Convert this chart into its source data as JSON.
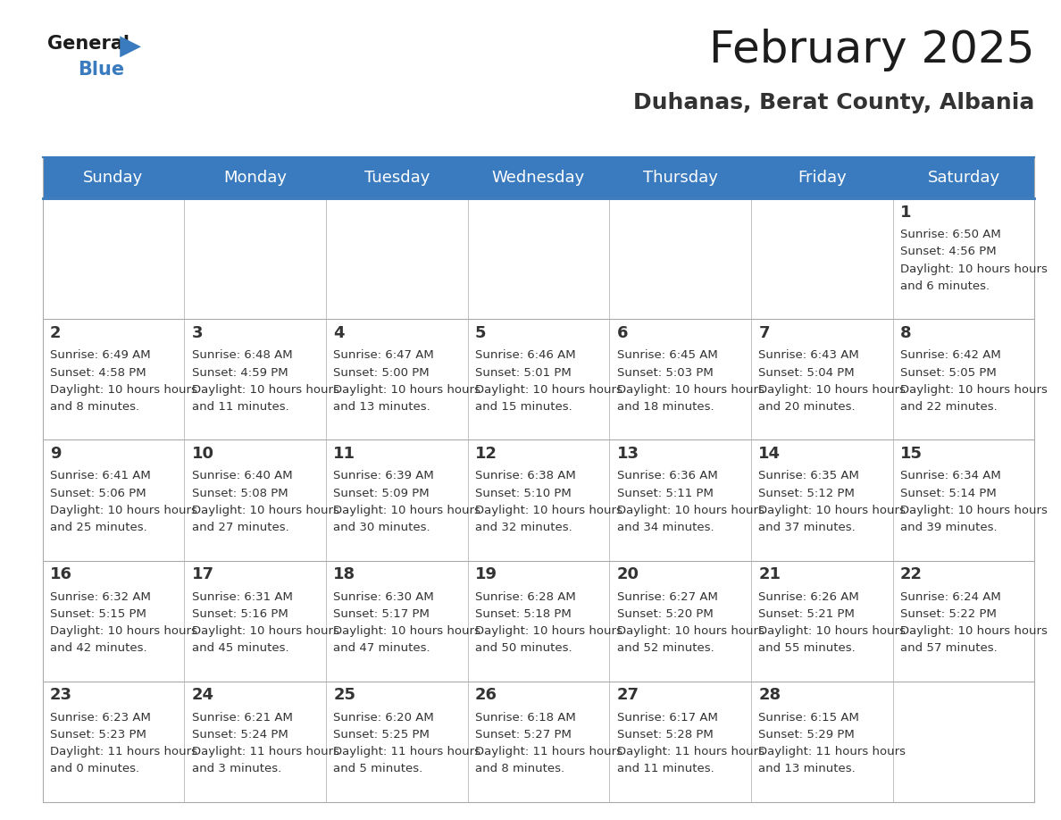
{
  "title": "February 2025",
  "subtitle": "Duhanas, Berat County, Albania",
  "header_color": "#3A7BBF",
  "header_text_color": "#FFFFFF",
  "day_names": [
    "Sunday",
    "Monday",
    "Tuesday",
    "Wednesday",
    "Thursday",
    "Friday",
    "Saturday"
  ],
  "title_fontsize": 36,
  "subtitle_fontsize": 18,
  "day_header_fontsize": 13,
  "cell_day_fontsize": 13,
  "cell_info_fontsize": 9.5,
  "background_color": "#FFFFFF",
  "cell_bg_color": "#FFFFFF",
  "alt_cell_bg_color": "#F0F4F8",
  "grid_color": "#AAAAAA",
  "text_color": "#333333",
  "days_data": [
    {
      "day": 1,
      "col": 6,
      "row": 0,
      "sunrise": "6:50 AM",
      "sunset": "4:56 PM",
      "daylight": "10 hours and 6 minutes."
    },
    {
      "day": 2,
      "col": 0,
      "row": 1,
      "sunrise": "6:49 AM",
      "sunset": "4:58 PM",
      "daylight": "10 hours and 8 minutes."
    },
    {
      "day": 3,
      "col": 1,
      "row": 1,
      "sunrise": "6:48 AM",
      "sunset": "4:59 PM",
      "daylight": "10 hours and 11 minutes."
    },
    {
      "day": 4,
      "col": 2,
      "row": 1,
      "sunrise": "6:47 AM",
      "sunset": "5:00 PM",
      "daylight": "10 hours and 13 minutes."
    },
    {
      "day": 5,
      "col": 3,
      "row": 1,
      "sunrise": "6:46 AM",
      "sunset": "5:01 PM",
      "daylight": "10 hours and 15 minutes."
    },
    {
      "day": 6,
      "col": 4,
      "row": 1,
      "sunrise": "6:45 AM",
      "sunset": "5:03 PM",
      "daylight": "10 hours and 18 minutes."
    },
    {
      "day": 7,
      "col": 5,
      "row": 1,
      "sunrise": "6:43 AM",
      "sunset": "5:04 PM",
      "daylight": "10 hours and 20 minutes."
    },
    {
      "day": 8,
      "col": 6,
      "row": 1,
      "sunrise": "6:42 AM",
      "sunset": "5:05 PM",
      "daylight": "10 hours and 22 minutes."
    },
    {
      "day": 9,
      "col": 0,
      "row": 2,
      "sunrise": "6:41 AM",
      "sunset": "5:06 PM",
      "daylight": "10 hours and 25 minutes."
    },
    {
      "day": 10,
      "col": 1,
      "row": 2,
      "sunrise": "6:40 AM",
      "sunset": "5:08 PM",
      "daylight": "10 hours and 27 minutes."
    },
    {
      "day": 11,
      "col": 2,
      "row": 2,
      "sunrise": "6:39 AM",
      "sunset": "5:09 PM",
      "daylight": "10 hours and 30 minutes."
    },
    {
      "day": 12,
      "col": 3,
      "row": 2,
      "sunrise": "6:38 AM",
      "sunset": "5:10 PM",
      "daylight": "10 hours and 32 minutes."
    },
    {
      "day": 13,
      "col": 4,
      "row": 2,
      "sunrise": "6:36 AM",
      "sunset": "5:11 PM",
      "daylight": "10 hours and 34 minutes."
    },
    {
      "day": 14,
      "col": 5,
      "row": 2,
      "sunrise": "6:35 AM",
      "sunset": "5:12 PM",
      "daylight": "10 hours and 37 minutes."
    },
    {
      "day": 15,
      "col": 6,
      "row": 2,
      "sunrise": "6:34 AM",
      "sunset": "5:14 PM",
      "daylight": "10 hours and 39 minutes."
    },
    {
      "day": 16,
      "col": 0,
      "row": 3,
      "sunrise": "6:32 AM",
      "sunset": "5:15 PM",
      "daylight": "10 hours and 42 minutes."
    },
    {
      "day": 17,
      "col": 1,
      "row": 3,
      "sunrise": "6:31 AM",
      "sunset": "5:16 PM",
      "daylight": "10 hours and 45 minutes."
    },
    {
      "day": 18,
      "col": 2,
      "row": 3,
      "sunrise": "6:30 AM",
      "sunset": "5:17 PM",
      "daylight": "10 hours and 47 minutes."
    },
    {
      "day": 19,
      "col": 3,
      "row": 3,
      "sunrise": "6:28 AM",
      "sunset": "5:18 PM",
      "daylight": "10 hours and 50 minutes."
    },
    {
      "day": 20,
      "col": 4,
      "row": 3,
      "sunrise": "6:27 AM",
      "sunset": "5:20 PM",
      "daylight": "10 hours and 52 minutes."
    },
    {
      "day": 21,
      "col": 5,
      "row": 3,
      "sunrise": "6:26 AM",
      "sunset": "5:21 PM",
      "daylight": "10 hours and 55 minutes."
    },
    {
      "day": 22,
      "col": 6,
      "row": 3,
      "sunrise": "6:24 AM",
      "sunset": "5:22 PM",
      "daylight": "10 hours and 57 minutes."
    },
    {
      "day": 23,
      "col": 0,
      "row": 4,
      "sunrise": "6:23 AM",
      "sunset": "5:23 PM",
      "daylight": "11 hours and 0 minutes."
    },
    {
      "day": 24,
      "col": 1,
      "row": 4,
      "sunrise": "6:21 AM",
      "sunset": "5:24 PM",
      "daylight": "11 hours and 3 minutes."
    },
    {
      "day": 25,
      "col": 2,
      "row": 4,
      "sunrise": "6:20 AM",
      "sunset": "5:25 PM",
      "daylight": "11 hours and 5 minutes."
    },
    {
      "day": 26,
      "col": 3,
      "row": 4,
      "sunrise": "6:18 AM",
      "sunset": "5:27 PM",
      "daylight": "11 hours and 8 minutes."
    },
    {
      "day": 27,
      "col": 4,
      "row": 4,
      "sunrise": "6:17 AM",
      "sunset": "5:28 PM",
      "daylight": "11 hours and 11 minutes."
    },
    {
      "day": 28,
      "col": 5,
      "row": 4,
      "sunrise": "6:15 AM",
      "sunset": "5:29 PM",
      "daylight": "11 hours and 13 minutes."
    }
  ]
}
